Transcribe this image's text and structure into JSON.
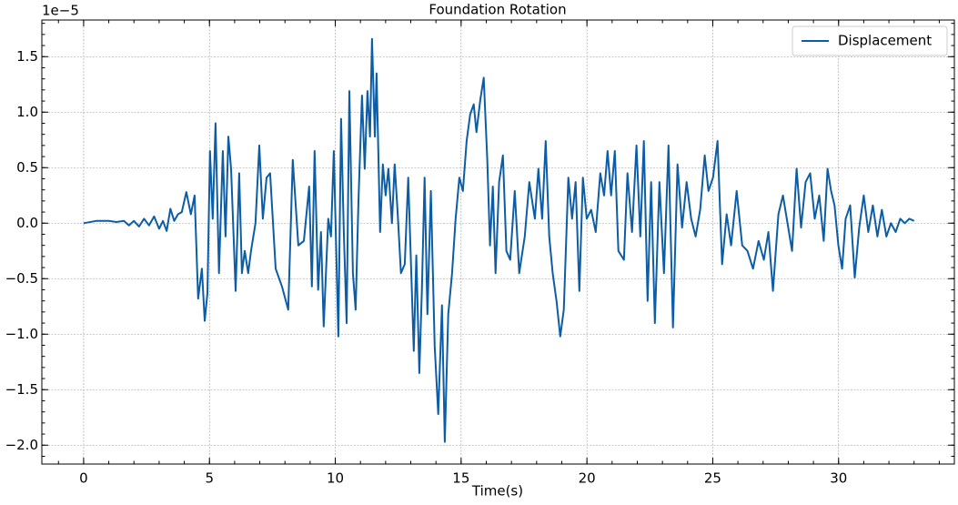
{
  "chart_data": {
    "type": "line",
    "title": "Foundation Rotation",
    "x_label": "Time(s)",
    "y_offset_label": "1e−5",
    "x": [
      0,
      0.5,
      1,
      1.3,
      1.6,
      1.8,
      2.0,
      2.2,
      2.4,
      2.6,
      2.8,
      3.0,
      3.15,
      3.3,
      3.45,
      3.6,
      3.75,
      3.9,
      4.08,
      4.26,
      4.41,
      4.55,
      4.7,
      4.81,
      4.92,
      5.02,
      5.13,
      5.24,
      5.38,
      5.53,
      5.64,
      5.75,
      5.86,
      6.04,
      6.18,
      6.29,
      6.4,
      6.54,
      6.65,
      6.83,
      6.98,
      7.12,
      7.27,
      7.41,
      7.63,
      7.88,
      8.13,
      8.31,
      8.53,
      8.75,
      8.96,
      9.07,
      9.18,
      9.32,
      9.43,
      9.54,
      9.72,
      9.83,
      9.94,
      10.12,
      10.23,
      10.34,
      10.45,
      10.56,
      10.7,
      10.81,
      10.92,
      11.06,
      11.17,
      11.28,
      11.38,
      11.46,
      11.57,
      11.64,
      11.78,
      11.89,
      12.0,
      12.11,
      12.25,
      12.36,
      12.47,
      12.61,
      12.76,
      12.9,
      13.12,
      13.22,
      13.34,
      13.44,
      13.55,
      13.66,
      13.8,
      13.95,
      14.09,
      14.24,
      14.35,
      14.49,
      14.64,
      14.78,
      14.93,
      15.07,
      15.22,
      15.36,
      15.5,
      15.61,
      15.76,
      15.9,
      16.04,
      16.15,
      16.26,
      16.37,
      16.51,
      16.66,
      16.8,
      16.95,
      17.13,
      17.31,
      17.53,
      17.71,
      17.93,
      18.07,
      18.22,
      18.36,
      18.5,
      18.64,
      18.79,
      18.94,
      19.08,
      19.26,
      19.41,
      19.55,
      19.7,
      19.84,
      19.99,
      20.17,
      20.35,
      20.53,
      20.68,
      20.82,
      20.96,
      21.11,
      21.25,
      21.47,
      21.61,
      21.79,
      21.97,
      22.12,
      22.26,
      22.41,
      22.55,
      22.7,
      22.88,
      23.06,
      23.24,
      23.42,
      23.6,
      23.78,
      23.96,
      24.14,
      24.32,
      24.5,
      24.68,
      24.83,
      25.01,
      25.19,
      25.37,
      25.55,
      25.73,
      25.95,
      26.17,
      26.38,
      26.6,
      26.82,
      27.03,
      27.21,
      27.39,
      27.61,
      27.79,
      27.97,
      28.15,
      28.33,
      28.51,
      28.69,
      28.87,
      29.05,
      29.23,
      29.41,
      29.56,
      29.7,
      29.84,
      29.99,
      30.14,
      30.28,
      30.46,
      30.64,
      30.82,
      31.0,
      31.18,
      31.36,
      31.54,
      31.72,
      31.9,
      32.08,
      32.27,
      32.45,
      32.63,
      32.81,
      33.0
    ],
    "series": [
      {
        "name": "Displacement",
        "color": "#0c5da5",
        "values": [
          0,
          0.02,
          0.02,
          0.01,
          0.02,
          -0.02,
          0.02,
          -0.03,
          0.04,
          -0.02,
          0.06,
          -0.05,
          0.02,
          -0.07,
          0.13,
          0.02,
          0.08,
          0.1,
          0.28,
          0.08,
          0.25,
          -0.68,
          -0.41,
          -0.88,
          -0.63,
          0.65,
          0.04,
          0.9,
          -0.45,
          0.65,
          -0.12,
          0.78,
          0.49,
          -0.61,
          0.45,
          -0.45,
          -0.25,
          -0.45,
          -0.25,
          0,
          0.7,
          0.04,
          0.41,
          0.45,
          -0.41,
          -0.57,
          -0.78,
          0.57,
          -0.2,
          -0.16,
          0.33,
          -0.57,
          0.65,
          -0.6,
          -0.08,
          -0.93,
          0.04,
          -0.12,
          0.65,
          -1.02,
          0.94,
          -0.08,
          -0.9,
          1.19,
          -0.45,
          -0.78,
          0.2,
          1.15,
          0.49,
          1.19,
          0.78,
          1.66,
          0.78,
          1.35,
          -0.08,
          0.53,
          0.25,
          0.49,
          0,
          0.53,
          0.12,
          -0.45,
          -0.37,
          0.41,
          -1.15,
          -0.29,
          -1.35,
          -0.61,
          0.41,
          -0.82,
          0.29,
          -1.11,
          -1.72,
          -0.74,
          -1.97,
          -0.82,
          -0.45,
          0.04,
          0.41,
          0.29,
          0.74,
          0.98,
          1.07,
          0.82,
          1.11,
          1.31,
          0.57,
          -0.2,
          0.33,
          -0.45,
          0.37,
          0.61,
          -0.25,
          -0.33,
          0.29,
          -0.45,
          -0.12,
          0.37,
          0.04,
          0.49,
          0.04,
          0.74,
          -0.12,
          -0.45,
          -0.7,
          -1.02,
          -0.78,
          0.41,
          0.04,
          0.37,
          -0.61,
          0.41,
          0.04,
          0.12,
          -0.08,
          0.45,
          0.25,
          0.65,
          0.25,
          0.65,
          -0.25,
          -0.33,
          0.45,
          -0.08,
          0.7,
          -0.12,
          0.74,
          -0.7,
          0.37,
          -0.9,
          0.37,
          -0.45,
          0.7,
          -0.94,
          0.53,
          -0.04,
          0.37,
          0.04,
          -0.12,
          0.12,
          0.61,
          0.29,
          0.41,
          0.74,
          -0.37,
          0.08,
          -0.2,
          0.29,
          -0.2,
          -0.25,
          -0.41,
          -0.16,
          -0.33,
          -0.08,
          -0.61,
          0.08,
          0.25,
          0,
          -0.25,
          0.49,
          -0.04,
          0.37,
          0.45,
          0.04,
          0.25,
          -0.16,
          0.49,
          0.29,
          0.16,
          -0.2,
          -0.41,
          0.04,
          0.16,
          -0.49,
          -0.04,
          0.25,
          -0.08,
          0.16,
          -0.12,
          0.12,
          -0.12,
          0,
          -0.08,
          0.04,
          0,
          0.04,
          0.02
        ]
      }
    ],
    "xlim": [
      -1.66,
      34.6
    ],
    "ylim": [
      -2.17,
      1.83
    ],
    "xticks": [
      0,
      5,
      10,
      15,
      20,
      25,
      30
    ],
    "yticks": [
      {
        "value": -2.0,
        "label": "−2.0"
      },
      {
        "value": -1.5,
        "label": "−1.5"
      },
      {
        "value": -1.0,
        "label": "−1.0"
      },
      {
        "value": -0.5,
        "label": "−0.5"
      },
      {
        "value": 0,
        "label": "0.0"
      },
      0.5,
      {
        "value": 1.0,
        "label": "1.0"
      },
      1.5
    ],
    "grid": true,
    "legend": "upper right"
  }
}
